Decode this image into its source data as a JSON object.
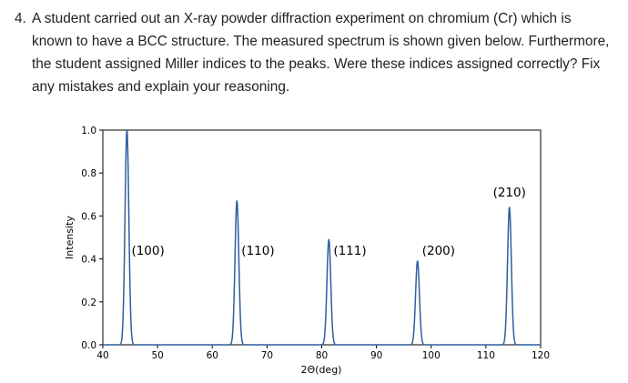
{
  "question": {
    "number": "4.",
    "text": "A student carried out an X-ray powder diffraction experiment on chromium (Cr) which is known to have a BCC structure. The measured spectrum is shown given below. Furthermore, the student assigned Miller indices to the peaks. Were these indices assigned correctly? Fix any mistakes and explain your reasoning."
  },
  "chart_data": {
    "type": "line",
    "title": "",
    "xlabel": "2Θ(deg)",
    "ylabel": "Intensity",
    "xlim": [
      40,
      120
    ],
    "ylim": [
      0,
      1.0
    ],
    "xticks": [
      40,
      50,
      60,
      70,
      80,
      90,
      100,
      110,
      120
    ],
    "yticks": [
      "0.0",
      "0.2",
      "0.4",
      "0.6",
      "0.8",
      "1.0"
    ],
    "grid": false,
    "line_color": "#2f5f9e",
    "peak_width_deg": 0.35,
    "peaks": [
      {
        "x": 44.4,
        "y": 1.0,
        "label": "(100)"
      },
      {
        "x": 64.5,
        "y": 0.67,
        "label": "(110)"
      },
      {
        "x": 81.3,
        "y": 0.49,
        "label": "(111)"
      },
      {
        "x": 97.5,
        "y": 0.39,
        "label": "(200)"
      },
      {
        "x": 114.3,
        "y": 0.64,
        "label": "(210)"
      }
    ]
  }
}
